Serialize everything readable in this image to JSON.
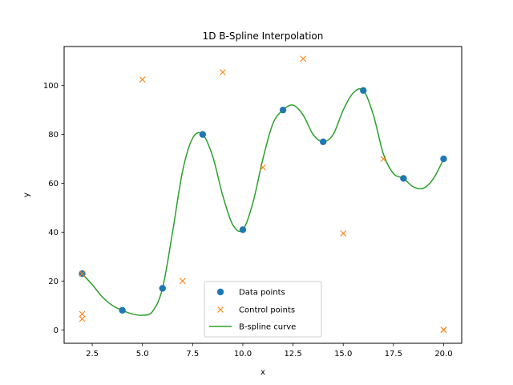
{
  "chart_data": {
    "type": "line",
    "title": "1D B-Spline Interpolation",
    "xlabel": "x",
    "ylabel": "y",
    "xlim": [
      1.1,
      20.9
    ],
    "ylim": [
      -5.5,
      116.0
    ],
    "xticks": [
      2.5,
      5.0,
      7.5,
      10.0,
      12.5,
      15.0,
      17.5,
      20.0
    ],
    "xtick_labels": [
      "2.5",
      "5.0",
      "7.5",
      "10.0",
      "12.5",
      "15.0",
      "17.5",
      "20.0"
    ],
    "yticks": [
      0,
      20,
      40,
      60,
      80,
      100
    ],
    "ytick_labels": [
      "0",
      "20",
      "40",
      "60",
      "80",
      "100"
    ],
    "grid": false,
    "legend_position": "lower center",
    "series": [
      {
        "name": "Data points",
        "style": "markers-circle",
        "color": "#1f77b4",
        "x": [
          2,
          4,
          6,
          8,
          10,
          12,
          14,
          16,
          18,
          20
        ],
        "y": [
          23,
          8,
          17,
          80,
          41,
          90,
          77,
          98,
          62,
          70
        ]
      },
      {
        "name": "Control points",
        "style": "markers-x",
        "color": "#ff7f0e",
        "x": [
          2,
          2,
          2,
          5,
          7,
          9,
          11,
          13,
          15,
          17,
          20,
          20
        ],
        "y": [
          23,
          6.5,
          4.5,
          102.5,
          20,
          105.5,
          66.5,
          111,
          39.5,
          70,
          0,
          0
        ]
      },
      {
        "name": "B-spline curve",
        "style": "line",
        "color": "#2ca02c",
        "x": [
          2,
          2.5,
          3,
          3.5,
          4,
          4.5,
          5,
          5.5,
          6,
          6.5,
          7,
          7.5,
          8,
          8.5,
          9,
          9.5,
          10,
          10.5,
          11,
          11.5,
          12,
          12.5,
          13,
          13.5,
          14,
          14.5,
          15,
          15.5,
          16,
          16.5,
          17,
          17.5,
          18,
          18.5,
          19,
          19.5,
          20
        ],
        "y": [
          23,
          18.5,
          13.5,
          10,
          8,
          6.5,
          6,
          7.5,
          17,
          40,
          65,
          78.5,
          80,
          71,
          55,
          43,
          41,
          52,
          70,
          84.5,
          90,
          92,
          88,
          80,
          77,
          80,
          90,
          97,
          98,
          88,
          72,
          64,
          62,
          58.5,
          58,
          62,
          70
        ]
      }
    ]
  }
}
